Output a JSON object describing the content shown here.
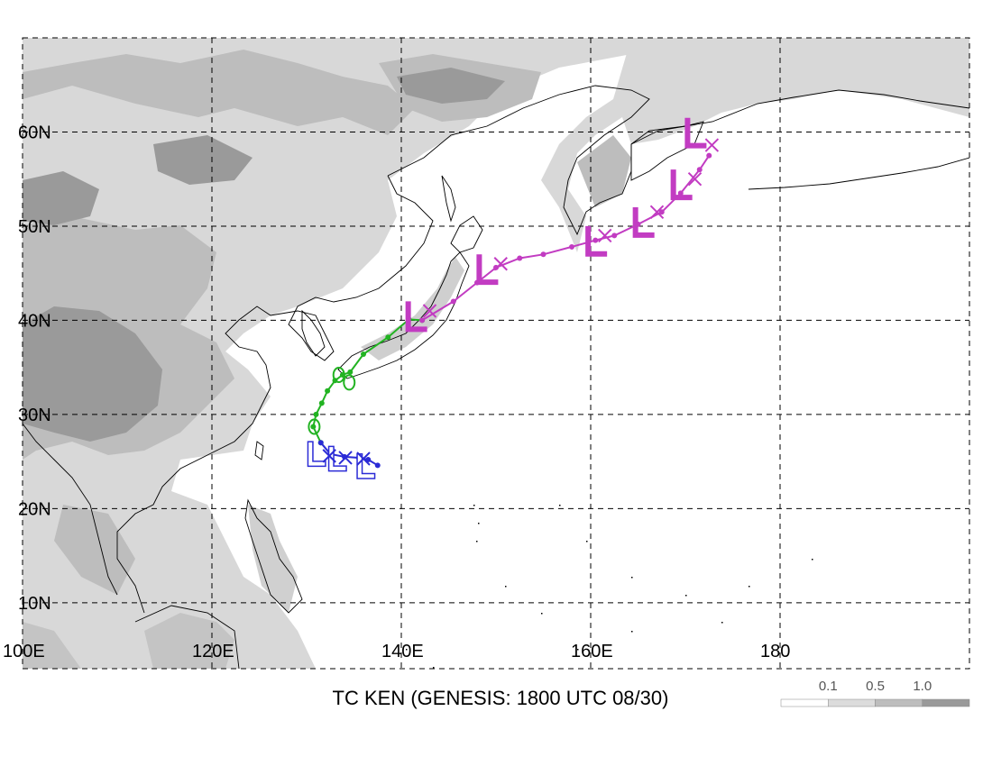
{
  "map": {
    "caption": "TC KEN (GENESIS: 1800 UTC 08/30)",
    "extent": {
      "lon_min": 100,
      "lon_max": 200,
      "lat_min": 3,
      "lat_max": 70
    },
    "lat_labels": [
      {
        "lat": 60,
        "text": "60N"
      },
      {
        "lat": 50,
        "text": "50N"
      },
      {
        "lat": 40,
        "text": "40N"
      },
      {
        "lat": 30,
        "text": "30N"
      },
      {
        "lat": 20,
        "text": "20N"
      },
      {
        "lat": 10,
        "text": "10N"
      }
    ],
    "lon_labels": [
      {
        "lon": 100,
        "text": "100E"
      },
      {
        "lon": 120,
        "text": "120E"
      },
      {
        "lon": 140,
        "text": "140E"
      },
      {
        "lon": 160,
        "text": "160E"
      },
      {
        "lon": 180,
        "text": "180"
      }
    ],
    "grid_lats": [
      10,
      20,
      30,
      40,
      50,
      60,
      70
    ],
    "grid_lons": [
      100,
      120,
      140,
      160,
      180,
      200
    ],
    "legend": {
      "labels": [
        "0.1",
        "0.5",
        "1.0"
      ],
      "colors": [
        "#ffffff",
        "#dcdcdc",
        "#bdbdbd",
        "#9a9a9a"
      ]
    },
    "colors": {
      "blue_track": "#2b2bd6",
      "green_track": "#22b322",
      "magenta_track": "#c23cc2",
      "terrain_light": "#d8d8d8",
      "terrain_mid": "#bdbdbd",
      "terrain_dark": "#9a9a9a"
    },
    "tracks": {
      "blue": [
        [
          131.5,
          27.0
        ],
        [
          132.5,
          25.8
        ],
        [
          134.0,
          25.5
        ],
        [
          135.5,
          25.4
        ],
        [
          136.5,
          25.2
        ],
        [
          137.5,
          24.6
        ]
      ],
      "green": [
        [
          131.5,
          27.0
        ],
        [
          130.7,
          28.7
        ],
        [
          131.0,
          30.0
        ],
        [
          131.6,
          31.2
        ],
        [
          132.2,
          32.5
        ],
        [
          133.0,
          33.6
        ],
        [
          133.8,
          34.2
        ],
        [
          134.6,
          34.5
        ],
        [
          136.0,
          36.4
        ],
        [
          138.6,
          38.2
        ],
        [
          140.8,
          40.1
        ],
        [
          142.2,
          40.0
        ]
      ],
      "magenta": [
        [
          142.2,
          40.0
        ],
        [
          145.5,
          42.0
        ],
        [
          148.0,
          44.0
        ],
        [
          150.0,
          45.6
        ],
        [
          152.5,
          46.6
        ],
        [
          155.0,
          47.0
        ],
        [
          158.0,
          47.8
        ],
        [
          160.5,
          48.5
        ],
        [
          162.5,
          49.0
        ],
        [
          165.0,
          50.2
        ],
        [
          167.5,
          51.5
        ],
        [
          169.5,
          53.5
        ],
        [
          171.5,
          56.0
        ],
        [
          172.5,
          57.5
        ]
      ]
    },
    "symbols": {
      "blue_L": [
        [
          131.0,
          25.5
        ],
        [
          133.2,
          25.0
        ],
        [
          136.2,
          24.2
        ]
      ],
      "blue_x": [
        [
          132.4,
          25.6
        ],
        [
          134.1,
          25.4
        ],
        [
          136.0,
          25.3
        ]
      ],
      "magenta_L": [
        [
          141.5,
          40.0
        ],
        [
          149.0,
          45.0
        ],
        [
          160.5,
          48.0
        ],
        [
          165.5,
          50.0
        ],
        [
          169.5,
          54.0
        ],
        [
          171.0,
          59.5
        ]
      ],
      "magenta_x": [
        [
          143.0,
          41.0
        ],
        [
          150.5,
          46.0
        ],
        [
          161.5,
          49.0
        ],
        [
          167.0,
          51.5
        ],
        [
          171.0,
          55.0
        ],
        [
          172.8,
          58.6
        ]
      ],
      "green_loops": [
        [
          130.8,
          28.7
        ],
        [
          133.4,
          34.2
        ],
        [
          134.5,
          33.4
        ]
      ]
    }
  }
}
